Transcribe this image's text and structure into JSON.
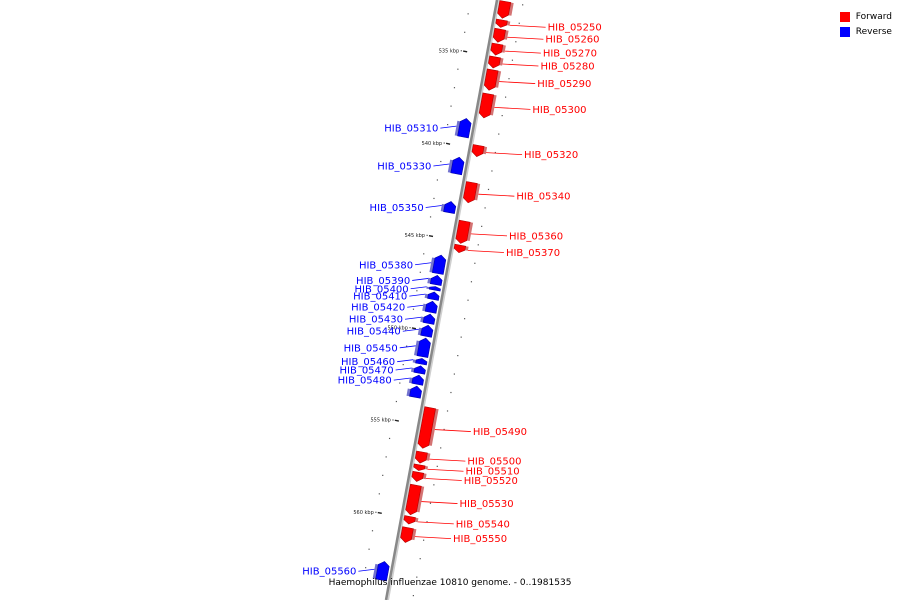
{
  "legend": [
    {
      "label": "Forward",
      "color": "#ff0000"
    },
    {
      "label": "Reverse",
      "color": "#0000ff"
    }
  ],
  "caption": "Haemophilus influenzae 10810 genome. - 0..1981535",
  "colors": {
    "forward": "#ff0000",
    "reverse": "#0000ff",
    "backbone": "#888888"
  },
  "scale": {
    "unit": "kbp",
    "ticks": [
      535,
      540,
      545,
      550,
      555,
      560,
      565
    ],
    "labels": [
      "535 kbp",
      "540 kbp",
      "545 kbp",
      "550 kbp",
      "555 kbp",
      "560 kbp",
      "565 kbp"
    ]
  },
  "genes": [
    {
      "id": "HIB_05240",
      "strand": "forward",
      "start": 532.0,
      "end": 532.9,
      "label": ""
    },
    {
      "id": "HIB_05250",
      "strand": "forward",
      "start": 533.0,
      "end": 533.4,
      "label": "HIB_05250"
    },
    {
      "id": "HIB_05260",
      "strand": "forward",
      "start": 533.5,
      "end": 534.2,
      "label": "HIB_05260"
    },
    {
      "id": "HIB_05270",
      "strand": "forward",
      "start": 534.3,
      "end": 534.9,
      "label": "HIB_05270"
    },
    {
      "id": "HIB_05280",
      "strand": "forward",
      "start": 535.0,
      "end": 535.6,
      "label": "HIB_05280"
    },
    {
      "id": "HIB_05290",
      "strand": "forward",
      "start": 535.7,
      "end": 536.8,
      "label": "HIB_05290"
    },
    {
      "id": "HIB_05300",
      "strand": "forward",
      "start": 537.0,
      "end": 538.3,
      "label": "HIB_05300"
    },
    {
      "id": "HIB_05310",
      "strand": "reverse",
      "start": 538.5,
      "end": 539.5,
      "label": "HIB_05310"
    },
    {
      "id": "HIB_05320",
      "strand": "forward",
      "start": 539.8,
      "end": 540.4,
      "label": "HIB_05320"
    },
    {
      "id": "HIB_05330",
      "strand": "reverse",
      "start": 540.6,
      "end": 541.5,
      "label": "HIB_05330"
    },
    {
      "id": "HIB_05340",
      "strand": "forward",
      "start": 541.8,
      "end": 542.9,
      "label": "HIB_05340"
    },
    {
      "id": "HIB_05350",
      "strand": "reverse",
      "start": 543.0,
      "end": 543.6,
      "label": "HIB_05350"
    },
    {
      "id": "HIB_05360",
      "strand": "forward",
      "start": 543.9,
      "end": 545.1,
      "label": "HIB_05360"
    },
    {
      "id": "HIB_05370",
      "strand": "forward",
      "start": 545.2,
      "end": 545.6,
      "label": "HIB_05370"
    },
    {
      "id": "HIB_05380",
      "strand": "reverse",
      "start": 545.9,
      "end": 546.9,
      "label": "HIB_05380"
    },
    {
      "id": "HIB_05390",
      "strand": "reverse",
      "start": 547.0,
      "end": 547.5,
      "label": "HIB_05390"
    },
    {
      "id": "HIB_05400",
      "strand": "reverse",
      "start": 547.6,
      "end": 547.8,
      "label": "HIB_05400"
    },
    {
      "id": "HIB_05410",
      "strand": "reverse",
      "start": 547.9,
      "end": 548.3,
      "label": "HIB_05410"
    },
    {
      "id": "HIB_05420",
      "strand": "reverse",
      "start": 548.4,
      "end": 549.0,
      "label": "HIB_05420"
    },
    {
      "id": "HIB_05430",
      "strand": "reverse",
      "start": 549.1,
      "end": 549.6,
      "label": "HIB_05430"
    },
    {
      "id": "HIB_05440",
      "strand": "reverse",
      "start": 549.7,
      "end": 550.3,
      "label": "HIB_05440"
    },
    {
      "id": "HIB_05450",
      "strand": "reverse",
      "start": 550.4,
      "end": 551.4,
      "label": "HIB_05450"
    },
    {
      "id": "HIB_05460",
      "strand": "reverse",
      "start": 551.5,
      "end": 551.8,
      "label": "HIB_05460"
    },
    {
      "id": "HIB_05470",
      "strand": "reverse",
      "start": 551.9,
      "end": 552.3,
      "label": "HIB_05470"
    },
    {
      "id": "HIB_05480",
      "strand": "reverse",
      "start": 552.4,
      "end": 552.9,
      "label": "HIB_05480"
    },
    {
      "id": "HIB_05480b",
      "strand": "reverse",
      "start": 553.0,
      "end": 553.6,
      "label": ""
    },
    {
      "id": "HIB_05490",
      "strand": "forward",
      "start": 554.0,
      "end": 556.2,
      "label": "HIB_05490"
    },
    {
      "id": "HIB_05500",
      "strand": "forward",
      "start": 556.4,
      "end": 557.0,
      "label": "HIB_05500"
    },
    {
      "id": "HIB_05510",
      "strand": "forward",
      "start": 557.1,
      "end": 557.4,
      "label": "HIB_05510"
    },
    {
      "id": "HIB_05520",
      "strand": "forward",
      "start": 557.5,
      "end": 558.0,
      "label": "HIB_05520"
    },
    {
      "id": "HIB_05530",
      "strand": "forward",
      "start": 558.2,
      "end": 559.8,
      "label": "HIB_05530"
    },
    {
      "id": "HIB_05540",
      "strand": "forward",
      "start": 559.9,
      "end": 560.3,
      "label": "HIB_05540"
    },
    {
      "id": "HIB_05550",
      "strand": "forward",
      "start": 560.5,
      "end": 561.3,
      "label": "HIB_05550"
    },
    {
      "id": "HIB_05560",
      "strand": "reverse",
      "start": 562.5,
      "end": 563.5,
      "label": "HIB_05560"
    }
  ]
}
